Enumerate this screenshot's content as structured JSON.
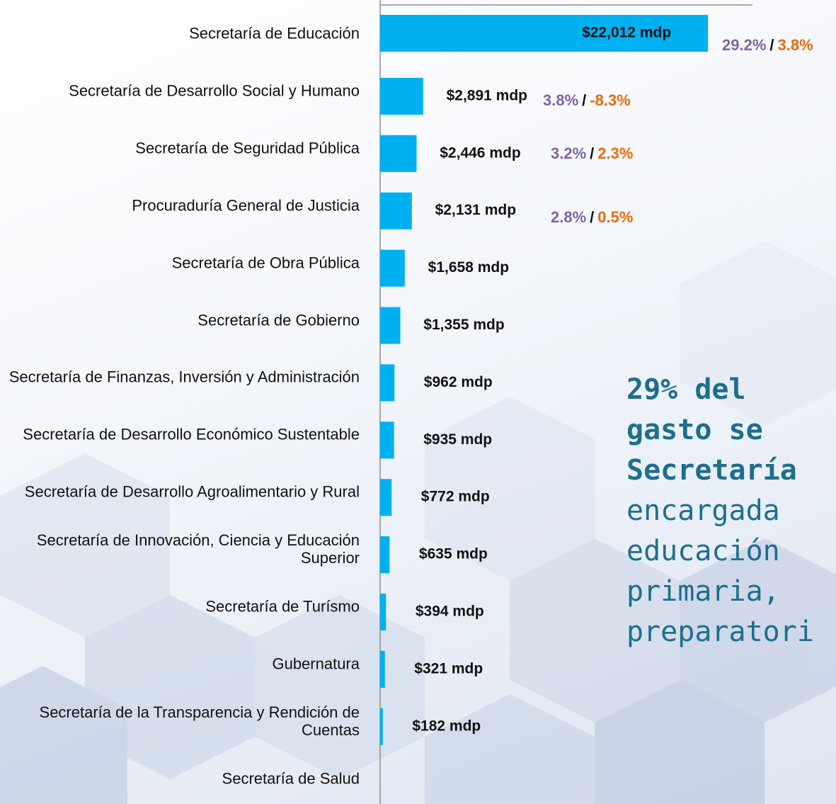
{
  "chart_data": {
    "type": "bar",
    "orientation": "horizontal",
    "categories": [
      "Secretaría de Educación",
      "Secretaría de Desarrollo Social y Humano",
      "Secretaría de Seguridad Pública",
      "Procuraduría General de Justicia",
      "Secretaría de Obra Pública",
      "Secretaría de Gobierno",
      "Secretaría de Finanzas, Inversión y Administración",
      "Secretaría de Desarrollo Económico Sustentable",
      "Secretaría de Desarrollo Agroalimentario y Rural",
      "Secretaría de Innovación, Ciencia y Educación Superior",
      "Secretaría de Turísmo",
      "Gubernatura",
      "Secretaría de la Transparencia y Rendición de Cuentas",
      "Secretaría de Salud"
    ],
    "values": [
      22012,
      2891,
      2446,
      2131,
      1658,
      1355,
      962,
      935,
      772,
      635,
      394,
      321,
      182,
      null
    ],
    "value_labels": [
      "$22,012 mdp",
      "$2,891 mdp",
      "$2,446 mdp",
      "$2,131 mdp",
      "$1,658 mdp",
      "$1,355 mdp",
      "$962 mdp",
      "$935 mdp",
      "$772 mdp",
      "$635 mdp",
      "$394 mdp",
      "$321 mdp",
      "$182 mdp",
      null
    ],
    "color": "#00b0f0",
    "xlim": [
      0,
      25000
    ],
    "annotations": [
      {
        "share": "29.2%",
        "separator": "/",
        "change": "3.8%"
      },
      {
        "share": "3.8%",
        "separator": "/",
        "change": "-8.3%"
      },
      {
        "share": "3.2%",
        "separator": "/",
        "change": "2.3%"
      },
      {
        "share": "2.8%",
        "separator": "/",
        "change": "0.5%"
      }
    ],
    "note_lines": [
      "29% del",
      "gasto se",
      "Secretaría",
      "encargada",
      "educación",
      "primaria,",
      "preparatori"
    ]
  }
}
